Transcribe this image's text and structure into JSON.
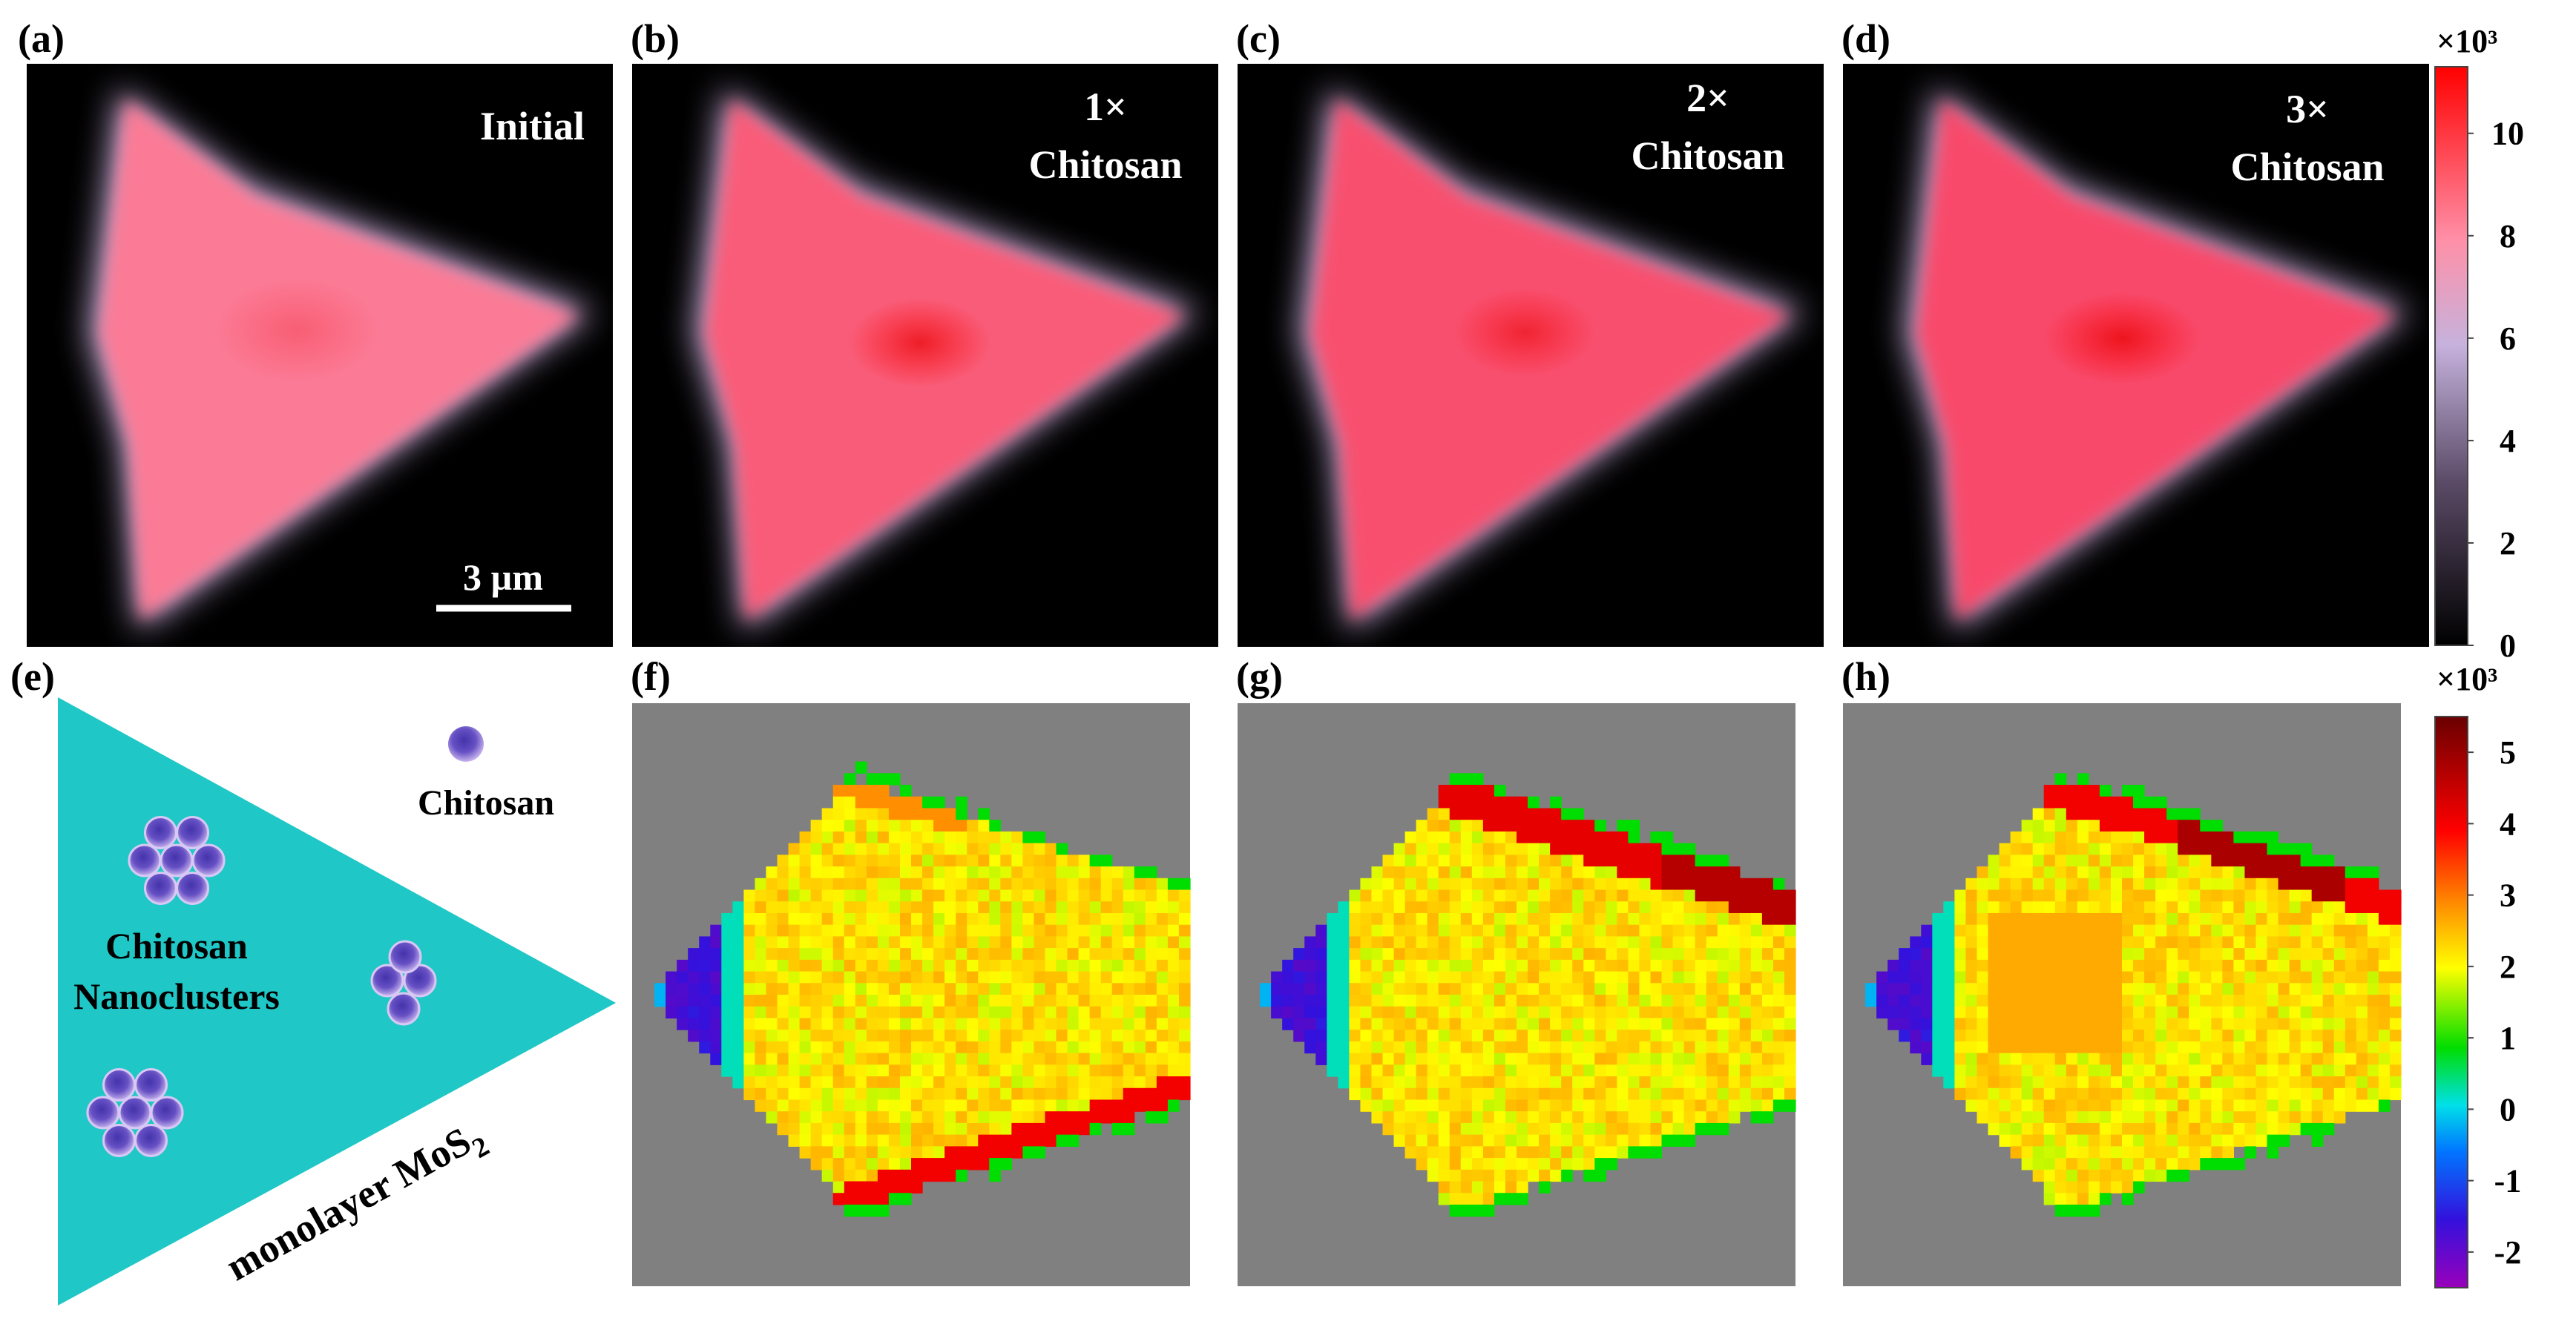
{
  "figure": {
    "panel_labels": [
      "(a)",
      "(b)",
      "(c)",
      "(d)",
      "(e)",
      "(f)",
      "(g)",
      "(h)"
    ],
    "pl_maps": [
      {
        "id": "a",
        "caption": [
          "Initial"
        ]
      },
      {
        "id": "b",
        "caption": [
          "1×",
          "Chitosan"
        ]
      },
      {
        "id": "c",
        "caption": [
          "2×",
          "Chitosan"
        ]
      },
      {
        "id": "d",
        "caption": [
          "3×",
          "Chitosan"
        ]
      }
    ],
    "scale_bar": {
      "label": "3 µm"
    },
    "top_colorbar": {
      "multiplier": "×10³",
      "ticks": [
        "10",
        "8",
        "6",
        "4",
        "2",
        "0"
      ],
      "tick_values": [
        10,
        8,
        6,
        4,
        2,
        0
      ],
      "range": [
        0,
        11.3
      ],
      "colors": [
        "#000000",
        "#b9a3d6",
        "#ff0000"
      ]
    },
    "bottom_colorbar": {
      "multiplier": "×10³",
      "ticks": [
        "5",
        "4",
        "3",
        "2",
        "1",
        "0",
        "-1",
        "-2"
      ],
      "tick_values": [
        5,
        4,
        3,
        2,
        1,
        0,
        -1,
        -2
      ],
      "range": [
        -2.5,
        5.5
      ],
      "colors": [
        "#8800aa",
        "#2222ee",
        "#00aaff",
        "#00e8e8",
        "#00dd00",
        "#ffff00",
        "#ff9900",
        "#ff0000",
        "#7a0000"
      ]
    },
    "schematic": {
      "legend_label": "Chitosan",
      "cluster_label": [
        "Chitosan",
        "Nanoclusters"
      ],
      "substrate_label": "monolayer MoS",
      "substrate_subscript": "2",
      "triangle_color": "#1fc7c7",
      "particle_color": "#7a5cc8"
    },
    "difference_maps": [
      {
        "id": "f"
      },
      {
        "id": "g"
      },
      {
        "id": "h"
      }
    ],
    "map_background": "#808080"
  }
}
